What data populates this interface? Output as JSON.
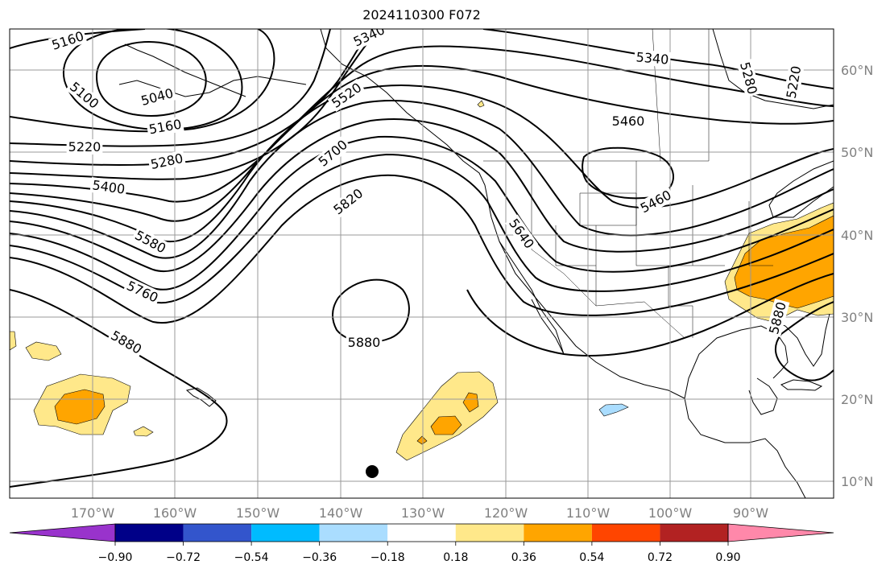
{
  "title": "2024110300 F072",
  "lon_ticks": [
    "170°W",
    "160°W",
    "150°W",
    "140°W",
    "130°W",
    "120°W",
    "110°W",
    "100°W",
    "90°W"
  ],
  "lat_ticks": [
    "60°N",
    "50°N",
    "40°N",
    "30°N",
    "20°N",
    "10°N"
  ],
  "contour_labels": [
    {
      "id": "c5160a",
      "text": "5160"
    },
    {
      "id": "c5100",
      "text": "5100"
    },
    {
      "id": "c5040",
      "text": "5040"
    },
    {
      "id": "c5160b",
      "text": "5160"
    },
    {
      "id": "c5220a",
      "text": "5220"
    },
    {
      "id": "c5280a",
      "text": "5280"
    },
    {
      "id": "c5400",
      "text": "5400"
    },
    {
      "id": "c5580",
      "text": "5580"
    },
    {
      "id": "c5760",
      "text": "5760"
    },
    {
      "id": "c5880a",
      "text": "5880"
    },
    {
      "id": "c5340a",
      "text": "5340"
    },
    {
      "id": "c5520",
      "text": "5520"
    },
    {
      "id": "c5700",
      "text": "5700"
    },
    {
      "id": "c5820",
      "text": "5820"
    },
    {
      "id": "c5880b",
      "text": "5880"
    },
    {
      "id": "c5340b",
      "text": "5340"
    },
    {
      "id": "c5460a",
      "text": "5460"
    },
    {
      "id": "c5460b",
      "text": "5460"
    },
    {
      "id": "c5640",
      "text": "5640"
    },
    {
      "id": "c5280b",
      "text": "5280"
    },
    {
      "id": "c5220b",
      "text": "5220"
    },
    {
      "id": "c5880c",
      "text": "5880"
    }
  ],
  "colorbar": {
    "colors": [
      "#9933cc",
      "#000088",
      "#3355cc",
      "#00bbff",
      "#aaddff",
      "#ffffff",
      "#ffe88a",
      "#ffa500",
      "#ff4500",
      "#b22222",
      "#ff88aa"
    ],
    "labels": [
      "−0.90",
      "−0.72",
      "−0.54",
      "−0.36",
      "−0.18",
      "0.18",
      "0.36",
      "0.54",
      "0.72",
      "0.90"
    ]
  },
  "colors": {
    "light_orange": "#ffe88a",
    "orange": "#ffa500",
    "light_blue": "#aaddff",
    "grid": "#999999"
  }
}
